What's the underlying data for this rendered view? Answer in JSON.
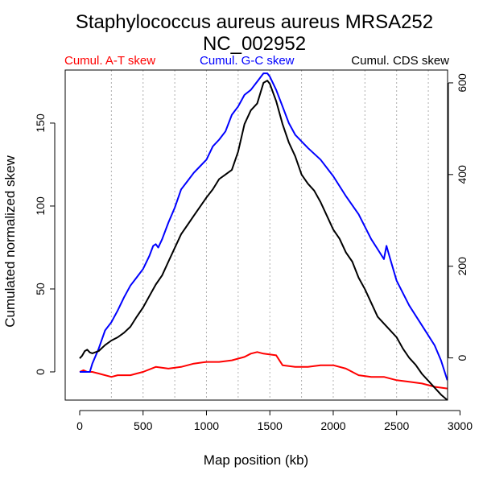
{
  "chart_data": {
    "type": "line",
    "title": "Staphylococcus aureus aureus MRSA252",
    "subtitle": "NC_002952",
    "xlabel": "Map position (kb)",
    "ylabel": "Cumulated normalized skew",
    "xlim": [
      0,
      2902
    ],
    "ylim_left": [
      -17,
      182
    ],
    "ylim_right": [
      -92,
      628
    ],
    "x_ticks": [
      0,
      500,
      1000,
      1500,
      2000,
      2500,
      3000
    ],
    "y_ticks_left": [
      0,
      50,
      100,
      150
    ],
    "y_ticks_right": [
      0,
      200,
      400,
      600
    ],
    "vertical_grid_kb": [
      250,
      500,
      750,
      1000,
      1250,
      1500,
      1750,
      2000,
      2250,
      2500,
      2750
    ],
    "grid": "vertical dotted",
    "legend": [
      {
        "name": "Cumul. A-T skew",
        "color": "#ff0000"
      },
      {
        "name": "Cumul. G-C skew",
        "color": "#0000ff"
      },
      {
        "name": "Cumul. CDS skew",
        "color": "#000000"
      }
    ],
    "series": [
      {
        "name": "Cumul. A-T skew",
        "color": "#ff0000",
        "axis": "left",
        "x": [
          0,
          30,
          60,
          100,
          150,
          250,
          300,
          400,
          450,
          500,
          600,
          700,
          800,
          900,
          1000,
          1100,
          1200,
          1300,
          1350,
          1400,
          1450,
          1550,
          1600,
          1700,
          1800,
          1900,
          2000,
          2100,
          2200,
          2300,
          2400,
          2500,
          2600,
          2700,
          2800,
          2900
        ],
        "values": [
          0,
          1,
          0,
          0,
          -1,
          -3,
          -2,
          -2,
          -1,
          0,
          3,
          2,
          3,
          5,
          6,
          6,
          7,
          9,
          11,
          12,
          11,
          10,
          4,
          3,
          3,
          4,
          4,
          2,
          -2,
          -3,
          -3,
          -5,
          -6,
          -7,
          -9,
          -10
        ]
      },
      {
        "name": "Cumul. G-C skew",
        "color": "#0000ff",
        "axis": "left",
        "x": [
          0,
          50,
          80,
          100,
          150,
          200,
          250,
          300,
          350,
          400,
          450,
          500,
          550,
          580,
          600,
          620,
          650,
          700,
          750,
          800,
          850,
          900,
          950,
          1000,
          1050,
          1100,
          1150,
          1200,
          1250,
          1300,
          1350,
          1400,
          1450,
          1480,
          1500,
          1550,
          1600,
          1650,
          1700,
          1800,
          1900,
          2000,
          2100,
          2200,
          2300,
          2350,
          2400,
          2420,
          2450,
          2500,
          2600,
          2700,
          2800,
          2850,
          2900
        ],
        "values": [
          0,
          0,
          0,
          5,
          14,
          25,
          30,
          37,
          45,
          52,
          57,
          62,
          70,
          76,
          77,
          75,
          80,
          90,
          99,
          110,
          115,
          120,
          124,
          128,
          136,
          140,
          145,
          155,
          160,
          167,
          170,
          175,
          180,
          180,
          178,
          170,
          160,
          150,
          143,
          135,
          128,
          118,
          106,
          95,
          80,
          74,
          68,
          76,
          68,
          55,
          40,
          28,
          16,
          7,
          -5
        ]
      },
      {
        "name": "Cumul. CDS skew",
        "color": "#000000",
        "axis": "right",
        "x": [
          0,
          20,
          40,
          60,
          80,
          100,
          150,
          200,
          250,
          300,
          350,
          400,
          450,
          500,
          550,
          600,
          650,
          700,
          750,
          800,
          850,
          900,
          950,
          1000,
          1050,
          1100,
          1150,
          1200,
          1250,
          1300,
          1350,
          1400,
          1450,
          1480,
          1500,
          1550,
          1600,
          1650,
          1700,
          1750,
          1800,
          1850,
          1900,
          1950,
          2000,
          2050,
          2100,
          2150,
          2200,
          2250,
          2300,
          2350,
          2400,
          2450,
          2500,
          2550,
          2600,
          2650,
          2700,
          2750,
          2800,
          2850,
          2900
        ],
        "values": [
          -1,
          5,
          15,
          18,
          12,
          10,
          15,
          28,
          38,
          45,
          55,
          68,
          90,
          110,
          135,
          160,
          180,
          210,
          240,
          270,
          290,
          310,
          330,
          350,
          368,
          390,
          400,
          410,
          450,
          510,
          540,
          555,
          600,
          605,
          598,
          560,
          510,
          470,
          440,
          400,
          380,
          365,
          340,
          310,
          280,
          260,
          230,
          210,
          175,
          150,
          120,
          90,
          75,
          60,
          45,
          20,
          0,
          -15,
          -35,
          -50,
          -65,
          -80,
          -92
        ]
      }
    ]
  }
}
